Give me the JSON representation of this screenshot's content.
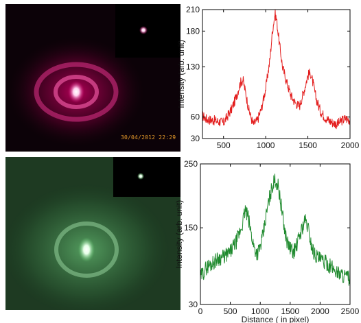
{
  "photos": {
    "red": {
      "timestamp": "30/04/2012 22:29"
    },
    "green": {}
  },
  "colors": {
    "red_series": "#e31e1e",
    "green_series": "#1f8a2e"
  },
  "chart_data": [
    {
      "type": "line",
      "title": "",
      "xlabel": "",
      "ylabel": "Intensity (arb. unit)",
      "xlim": [
        250,
        2000
      ],
      "ylim": [
        30,
        210
      ],
      "xticks": [
        500,
        1000,
        1500,
        2000
      ],
      "yticks": [
        30,
        60,
        130,
        180,
        210
      ],
      "series": [
        {
          "color": "#e31e1e",
          "x": [
            250,
            300,
            400,
            500,
            550,
            600,
            650,
            700,
            730,
            760,
            800,
            850,
            900,
            950,
            1000,
            1050,
            1080,
            1110,
            1130,
            1160,
            1200,
            1250,
            1300,
            1350,
            1400,
            1450,
            1500,
            1530,
            1560,
            1600,
            1650,
            1700,
            1750,
            1800,
            1850,
            1900,
            1950,
            2000
          ],
          "y": [
            62,
            57,
            55,
            52,
            62,
            72,
            88,
            108,
            112,
            95,
            70,
            50,
            55,
            72,
            100,
            140,
            180,
            205,
            195,
            165,
            130,
            108,
            90,
            80,
            75,
            95,
            118,
            122,
            108,
            85,
            68,
            60,
            55,
            52,
            50,
            55,
            58,
            56
          ]
        }
      ]
    },
    {
      "type": "line",
      "title": "",
      "xlabel": "Distance ( in pixel)",
      "ylabel": "Intensity (arb. unit)",
      "xlim": [
        0,
        2500
      ],
      "ylim": [
        30,
        250
      ],
      "xticks": [
        0,
        500,
        1000,
        1500,
        2000,
        2500
      ],
      "yticks": [
        30,
        150,
        250
      ],
      "series": [
        {
          "color": "#1f8a2e",
          "x": [
            0,
            100,
            200,
            300,
            400,
            500,
            600,
            700,
            750,
            800,
            850,
            900,
            950,
            1000,
            1050,
            1100,
            1150,
            1200,
            1250,
            1300,
            1350,
            1400,
            1450,
            1500,
            1550,
            1600,
            1650,
            1700,
            1750,
            1800,
            1850,
            1900,
            2000,
            2100,
            2200,
            2300,
            2400,
            2500
          ],
          "y": [
            72,
            88,
            95,
            102,
            105,
            112,
            128,
            155,
            178,
            165,
            140,
            118,
            110,
            120,
            140,
            170,
            195,
            215,
            225,
            215,
            185,
            150,
            128,
            118,
            112,
            120,
            135,
            150,
            162,
            150,
            125,
            110,
            100,
            95,
            88,
            80,
            75,
            70
          ]
        }
      ]
    }
  ]
}
